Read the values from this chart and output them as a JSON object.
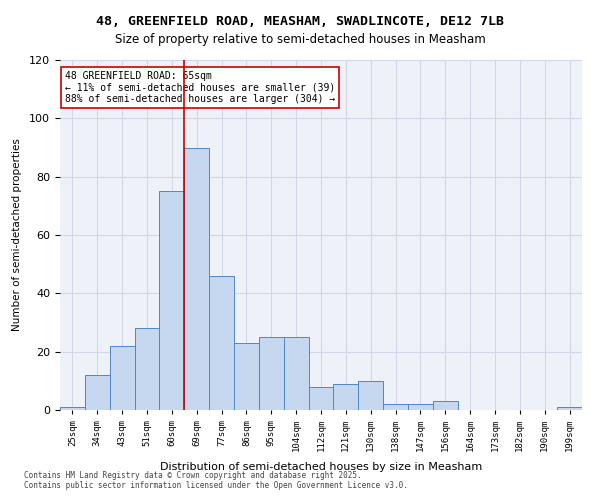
{
  "title_line1": "48, GREENFIELD ROAD, MEASHAM, SWADLINCOTE, DE12 7LB",
  "title_line2": "Size of property relative to semi-detached houses in Measham",
  "xlabel": "Distribution of semi-detached houses by size in Measham",
  "ylabel": "Number of semi-detached properties",
  "categories": [
    "25sqm",
    "34sqm",
    "43sqm",
    "51sqm",
    "60sqm",
    "69sqm",
    "77sqm",
    "86sqm",
    "95sqm",
    "104sqm",
    "112sqm",
    "121sqm",
    "130sqm",
    "138sqm",
    "147sqm",
    "156sqm",
    "164sqm",
    "173sqm",
    "182sqm",
    "190sqm",
    "199sqm"
  ],
  "values": [
    1,
    12,
    22,
    28,
    75,
    90,
    46,
    23,
    25,
    25,
    8,
    9,
    10,
    2,
    2,
    3,
    0,
    0,
    0,
    0,
    1
  ],
  "bar_color": "#c5d8f0",
  "bar_edge_color": "#4f87c4",
  "grid_color": "#d0d8e8",
  "background_color": "#eef2f8",
  "property_value": 65,
  "property_label": "48 GREENFIELD ROAD: 65sqm",
  "pct_smaller": 11,
  "pct_smaller_count": 39,
  "pct_larger": 88,
  "pct_larger_count": 304,
  "annotation_box_color": "#ffffff",
  "annotation_box_edge": "#cc0000",
  "vline_color": "#cc0000",
  "vline_x_index": 4,
  "ylim": [
    0,
    120
  ],
  "yticks": [
    0,
    20,
    40,
    60,
    80,
    100,
    120
  ],
  "footnote1": "Contains HM Land Registry data © Crown copyright and database right 2025.",
  "footnote2": "Contains public sector information licensed under the Open Government Licence v3.0."
}
